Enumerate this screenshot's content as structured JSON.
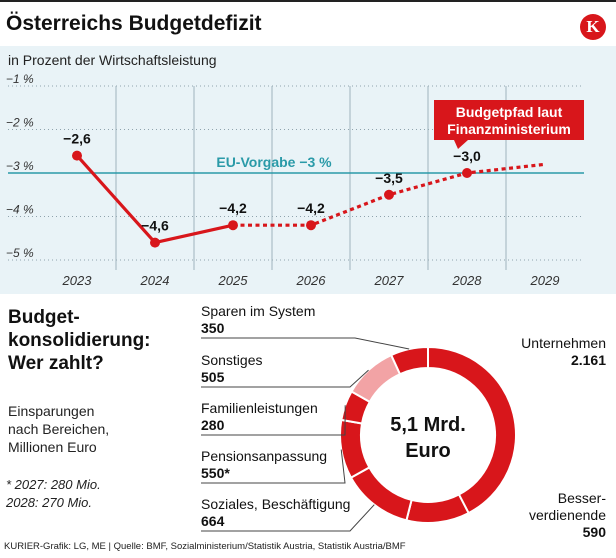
{
  "header": {
    "title": "Österreichs Budgetdefizit",
    "logo_letter": "K"
  },
  "colors": {
    "accent_red": "#d8161b",
    "light_red": "#f2a3a5",
    "teal": "#2a9aa8",
    "panel_bg": "#e9f3f7"
  },
  "chart_data": [
    {
      "type": "line",
      "title": "Österreichs Budgetdefizit",
      "subtitle": "in Prozent der Wirtschaftsleistung",
      "x": [
        "2023",
        "2024",
        "2025",
        "2026",
        "2027",
        "2028",
        "2029"
      ],
      "y_ticks": [
        "−1 %",
        "−2 %",
        "−3 %",
        "−4 %",
        "−5 %"
      ],
      "ylim": [
        -5,
        -1
      ],
      "series": [
        {
          "name": "",
          "style": "solid",
          "x": [
            "2023",
            "2024",
            "2025"
          ],
          "values": [
            -2.6,
            -4.6,
            -4.2
          ]
        },
        {
          "name": "Budgetpfad laut Finanzministerium",
          "style": "dotted",
          "x": [
            "2025",
            "2026",
            "2027",
            "2028",
            "2029"
          ],
          "values": [
            -4.2,
            -4.2,
            -3.5,
            -3.0,
            -2.8
          ]
        }
      ],
      "data_labels": [
        {
          "x": "2023",
          "value": -2.6,
          "text": "−2,6"
        },
        {
          "x": "2024",
          "value": -4.6,
          "text": "−4,6"
        },
        {
          "x": "2025",
          "value": -4.2,
          "text": "−4,2"
        },
        {
          "x": "2026",
          "value": -4.2,
          "text": "−4,2"
        },
        {
          "x": "2027",
          "value": -3.5,
          "text": "−3,5"
        },
        {
          "x": "2028",
          "value": -3.0,
          "text": "−3,0"
        }
      ],
      "reference_line": {
        "value": -3,
        "label": "EU-Vorgabe −3 %"
      },
      "annotation": {
        "line1": "Budgetpfad laut",
        "line2": "Finanzministerium"
      },
      "grid": true
    },
    {
      "type": "pie",
      "style": "donut",
      "title": "Budget-\nkonsolidierung:\nWer zahlt?",
      "subtitle": "Einsparungen\nnach Bereichen,\nMillionen Euro",
      "center_label": {
        "line1": "5,1 Mrd.",
        "line2": "Euro"
      },
      "slices": [
        {
          "name": "Unternehmen",
          "value": 2161,
          "text": "2.161",
          "highlight": false
        },
        {
          "name": "Besser-\nverdienende",
          "value": 590,
          "text": "590",
          "highlight": false
        },
        {
          "name": "Soziales, Beschäftigung",
          "value": 664,
          "text": "664",
          "highlight": false
        },
        {
          "name": "Pensionsanpassung",
          "value": 550,
          "text": "550*",
          "highlight": false
        },
        {
          "name": "Familienleistungen",
          "value": 280,
          "text": "280",
          "highlight": false
        },
        {
          "name": "Sonstiges",
          "value": 505,
          "text": "505",
          "highlight": true
        },
        {
          "name": "Sparen im System",
          "value": 350,
          "text": "350",
          "highlight": false
        }
      ],
      "footnote": "* 2027: 280 Mio.\n  2028: 270 Mio."
    }
  ],
  "footer": {
    "source": "KURIER-Grafik: LG, ME | Quelle: BMF, Sozialministerium/Statistik Austria,  Statistik Austria/BMF"
  }
}
